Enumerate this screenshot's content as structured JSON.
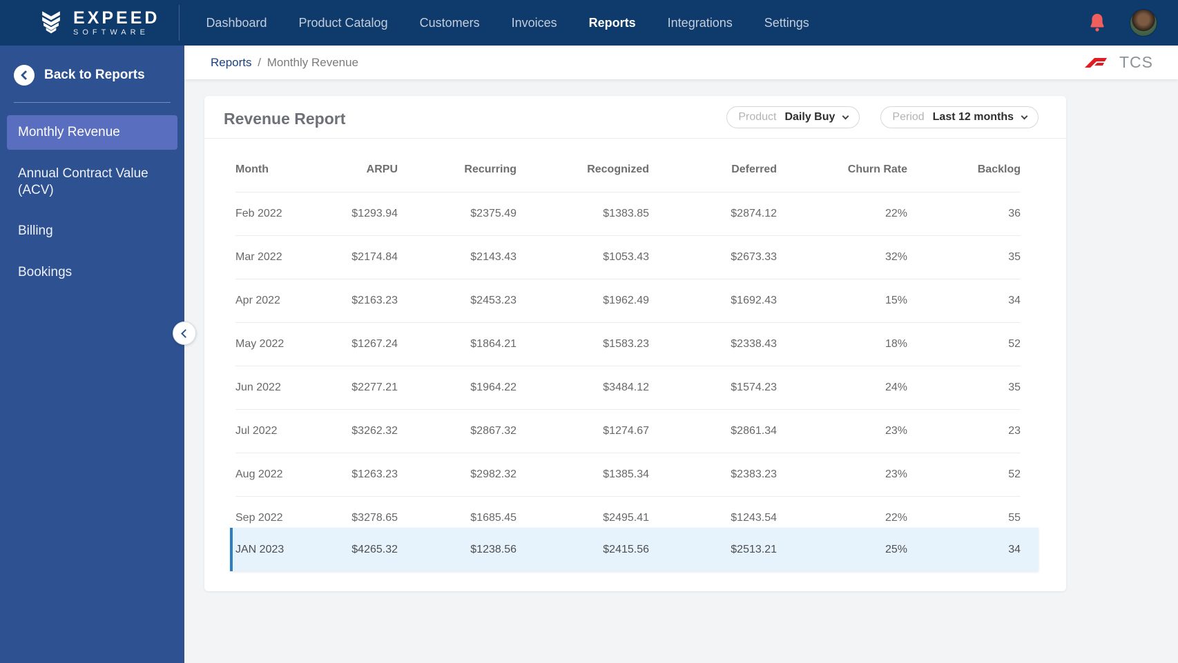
{
  "navbar": {
    "logo": {
      "line1": "EXPEED",
      "line2": "SOFTWARE"
    },
    "items": [
      {
        "label": "Dashboard",
        "active": false
      },
      {
        "label": "Product Catalog",
        "active": false
      },
      {
        "label": "Customers",
        "active": false
      },
      {
        "label": "Invoices",
        "active": false
      },
      {
        "label": "Reports",
        "active": true
      },
      {
        "label": "Integrations",
        "active": false
      },
      {
        "label": "Settings",
        "active": false
      }
    ]
  },
  "sidebar": {
    "back_label": "Back to Reports",
    "items": [
      {
        "label": "Monthly Revenue",
        "active": true
      },
      {
        "label": "Annual Contract Value (ACV)",
        "active": false
      },
      {
        "label": "Billing",
        "active": false
      },
      {
        "label": "Bookings",
        "active": false
      }
    ]
  },
  "breadcrumb": {
    "link": "Reports",
    "separator": "/",
    "current": "Monthly Revenue",
    "brand_text": "TCS"
  },
  "report": {
    "title": "Revenue Report",
    "filters": [
      {
        "label": "Product",
        "value": "Daily Buy"
      },
      {
        "label": "Period",
        "value": "Last 12 months"
      }
    ]
  },
  "chart_data": {
    "type": "table",
    "title": "Revenue Report",
    "columns": [
      "Month",
      "ARPU",
      "Recurring",
      "Recognized",
      "Deferred",
      "Churn Rate",
      "Backlog"
    ],
    "rows": [
      [
        "Feb 2022",
        "$1293.94",
        "$2375.49",
        "$1383.85",
        "$2874.12",
        "22%",
        "36"
      ],
      [
        "Mar 2022",
        "$2174.84",
        "$2143.43",
        "$1053.43",
        "$2673.33",
        "32%",
        "35"
      ],
      [
        "Apr 2022",
        "$2163.23",
        "$2453.23",
        "$1962.49",
        "$1692.43",
        "15%",
        "34"
      ],
      [
        "May 2022",
        "$1267.24",
        "$1864.21",
        "$1583.23",
        "$2338.43",
        "18%",
        "52"
      ],
      [
        "Jun 2022",
        "$2277.21",
        "$1964.22",
        "$3484.12",
        "$1574.23",
        "24%",
        "35"
      ],
      [
        "Jul 2022",
        "$3262.32",
        "$2867.32",
        "$1274.67",
        "$2861.34",
        "23%",
        "23"
      ],
      [
        "Aug 2022",
        "$1263.23",
        "$2982.32",
        "$1385.34",
        "$2383.23",
        "23%",
        "52"
      ],
      [
        "Sep 2022",
        "$3278.65",
        "$1685.45",
        "$2495.41",
        "$1243.54",
        "22%",
        "55"
      ]
    ],
    "pinned_row": [
      "JAN 2023",
      "$4265.32",
      "$1238.56",
      "$2415.56",
      "$2513.21",
      "25%",
      "34"
    ]
  },
  "colors": {
    "navbar_bg": "#0e3a6c",
    "sidebar_bg": "#2e5191",
    "active_item_bg": "#5a6ec0",
    "content_bg": "#f2f4f6",
    "bell_color": "#f15e5e",
    "tcs_red": "#e11b22",
    "breadcrumb_link": "#1b4080",
    "highlight_row_bg": "#e7f3fc",
    "highlight_border": "#2f7fc0"
  }
}
